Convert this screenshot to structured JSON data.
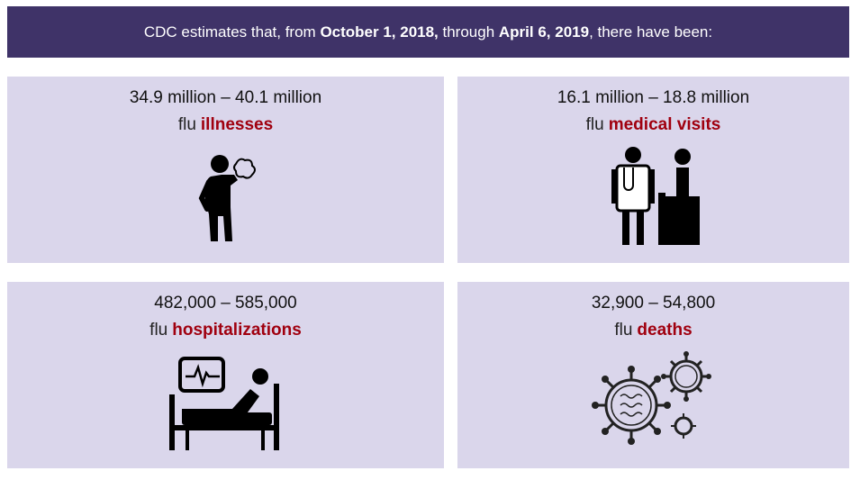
{
  "header": {
    "segments": [
      "CDC estimates that, from ",
      "October 1, 2018,",
      " through ",
      "April 6, 2019",
      ", there have been:"
    ]
  },
  "cards": [
    {
      "range": "34.9 million – 40.1 million",
      "prefix": "flu",
      "label": "illnesses"
    },
    {
      "range": "16.1 million – 18.8 million",
      "prefix": "flu",
      "label": "medical visits"
    },
    {
      "range": "482,000 – 585,000",
      "prefix": "flu",
      "label": "hospitalizations"
    },
    {
      "range": "32,900 – 54,800",
      "prefix": "flu",
      "label": "deaths"
    }
  ]
}
